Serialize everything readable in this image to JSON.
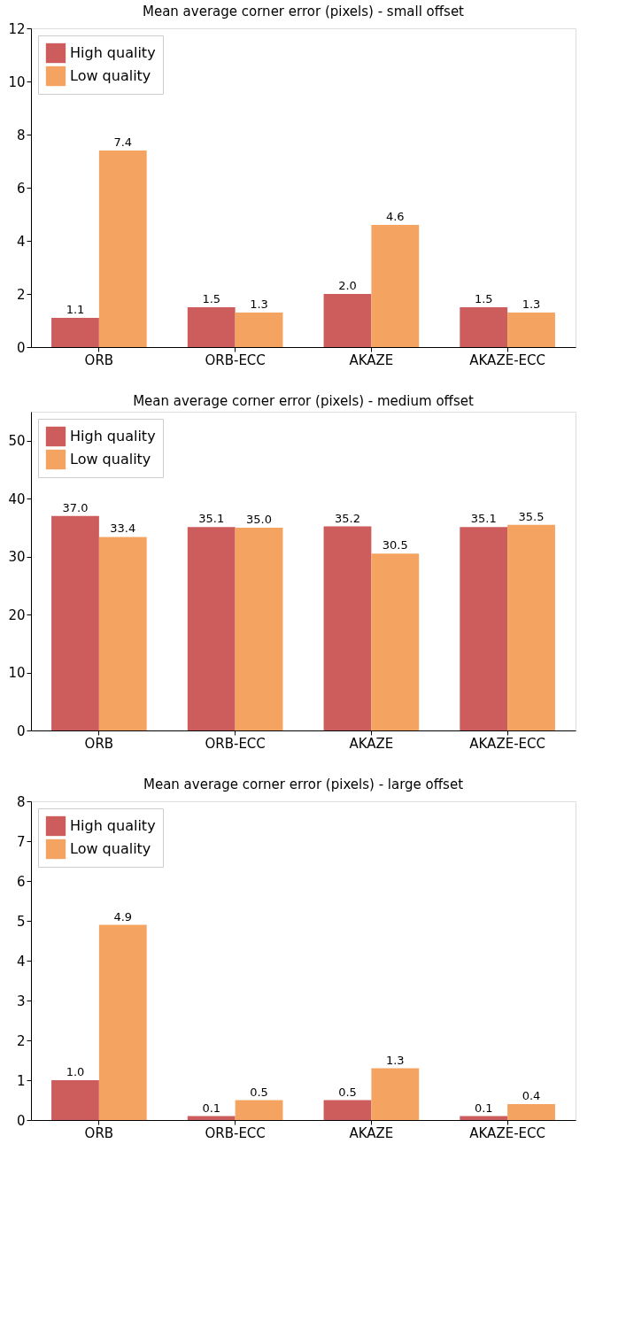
{
  "chart_data": [
    {
      "type": "bar",
      "title": "Mean average corner error (pixels) - small offset",
      "categories": [
        "ORB",
        "ORB-ECC",
        "AKAZE",
        "AKAZE-ECC"
      ],
      "series": [
        {
          "name": "High quality",
          "color": "#cd5c5c",
          "values": [
            1.1,
            1.5,
            2.0,
            1.5
          ],
          "value_labels": [
            "1.1",
            "1.5",
            "2.0",
            "1.5"
          ]
        },
        {
          "name": "Low quality",
          "color": "#f4a460",
          "values": [
            7.4,
            1.3,
            4.6,
            1.3
          ],
          "value_labels": [
            "7.4",
            "1.3",
            "4.6",
            "1.3"
          ]
        }
      ],
      "ylim": [
        0,
        12
      ],
      "yticks": [
        0,
        2,
        4,
        6,
        8,
        10,
        12
      ],
      "grid": false,
      "legend": "top left"
    },
    {
      "type": "bar",
      "title": "Mean average corner error (pixels) - medium offset",
      "categories": [
        "ORB",
        "ORB-ECC",
        "AKAZE",
        "AKAZE-ECC"
      ],
      "series": [
        {
          "name": "High quality",
          "color": "#cd5c5c",
          "values": [
            37.0,
            35.1,
            35.2,
            35.1
          ],
          "value_labels": [
            "37.0",
            "35.1",
            "35.2",
            "35.1"
          ]
        },
        {
          "name": "Low quality",
          "color": "#f4a460",
          "values": [
            33.4,
            35.0,
            30.5,
            35.5
          ],
          "value_labels": [
            "33.4",
            "35.0",
            "30.5",
            "35.5"
          ]
        }
      ],
      "ylim": [
        0,
        55
      ],
      "yticks": [
        0,
        10,
        20,
        30,
        40,
        50
      ],
      "grid": false,
      "legend": "top left"
    },
    {
      "type": "bar",
      "title": "Mean average corner error (pixels) - large offset",
      "categories": [
        "ORB",
        "ORB-ECC",
        "AKAZE",
        "AKAZE-ECC"
      ],
      "series": [
        {
          "name": "High quality",
          "color": "#cd5c5c",
          "values": [
            1.0,
            0.1,
            0.5,
            0.1
          ],
          "value_labels": [
            "1.0",
            "0.1",
            "0.5",
            "0.1"
          ]
        },
        {
          "name": "Low quality",
          "color": "#f4a460",
          "values": [
            4.9,
            0.5,
            1.3,
            0.4
          ],
          "value_labels": [
            "4.9",
            "0.5",
            "1.3",
            "0.4"
          ]
        }
      ],
      "ylim": [
        0,
        8
      ],
      "yticks": [
        0,
        1,
        2,
        3,
        4,
        5,
        6,
        7,
        8
      ],
      "grid": false,
      "legend": "top left"
    }
  ]
}
